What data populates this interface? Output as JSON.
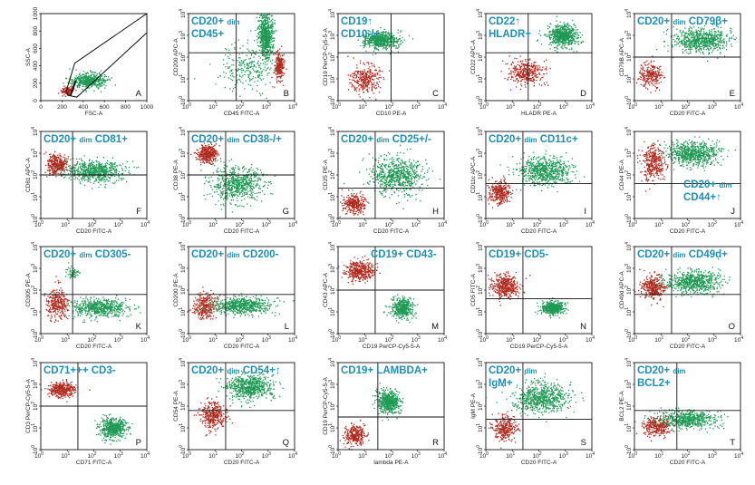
{
  "colors": {
    "red_population": "#b02a1e",
    "green_population": "#1f9a55",
    "annotation": "#1f8fb4",
    "axes": "#111111",
    "gate_dark": "#3a1010"
  },
  "chart_data": [
    {
      "type": "scatter",
      "panel": "A",
      "scale": "linear",
      "xlabel": "FSC-A",
      "ylabel": "SSC-A",
      "xticks": [
        "0",
        "200",
        "400",
        "600",
        "800",
        "1000"
      ],
      "yticks": [
        "0",
        "200",
        "400",
        "600",
        "800",
        "1000"
      ],
      "annotations": [],
      "gate": "polygon",
      "populations": [
        {
          "color": "red",
          "x_center": 250,
          "y_center": 120,
          "spread_x": 50,
          "spread_y": 40,
          "n": 120
        },
        {
          "color": "green",
          "x_center": 450,
          "y_center": 230,
          "spread_x": 140,
          "spread_y": 80,
          "n": 500
        }
      ]
    },
    {
      "type": "scatter",
      "panel": "B",
      "xlabel": "CD45 FITC-A",
      "ylabel": "CD200 APC-A",
      "quadrant": [
        1.8,
        2.2
      ],
      "annotations": [
        "CD20+ dim",
        "CD45+"
      ],
      "populations": [
        {
          "color": "green",
          "x_center": 2.9,
          "y_center": 3.0,
          "spread_x": 0.25,
          "spread_y": 0.9,
          "n": 700
        },
        {
          "color": "red",
          "x_center": 3.4,
          "y_center": 1.6,
          "spread_x": 0.15,
          "spread_y": 0.6,
          "n": 250
        },
        {
          "color": "green",
          "x_center": 2.2,
          "y_center": 1.5,
          "spread_x": 0.9,
          "spread_y": 1.0,
          "n": 250
        }
      ]
    },
    {
      "type": "scatter",
      "panel": "C",
      "xlabel": "CD10 PE-A",
      "ylabel": "CD19 PerCP-Cy5-5-A",
      "quadrant": [
        2.0,
        2.2
      ],
      "annotations": [
        "CD19↑",
        "CD10-/+"
      ],
      "populations": [
        {
          "color": "green",
          "x_center": 1.6,
          "y_center": 2.8,
          "spread_x": 0.6,
          "spread_y": 0.35,
          "n": 650
        },
        {
          "color": "red",
          "x_center": 1.0,
          "y_center": 1.0,
          "spread_x": 0.5,
          "spread_y": 0.6,
          "n": 300
        }
      ]
    },
    {
      "type": "scatter",
      "panel": "D",
      "xlabel": "HLADR PE-A",
      "ylabel": "CD22 APC-A",
      "quadrant": [
        1.6,
        2.2
      ],
      "annotations": [
        "CD22↑",
        "HLADR+"
      ],
      "populations": [
        {
          "color": "green",
          "x_center": 2.9,
          "y_center": 3.0,
          "spread_x": 0.5,
          "spread_y": 0.45,
          "n": 650
        },
        {
          "color": "red",
          "x_center": 1.5,
          "y_center": 1.3,
          "spread_x": 0.55,
          "spread_y": 0.5,
          "n": 350
        }
      ]
    },
    {
      "type": "scatter",
      "panel": "E",
      "xlabel": "CD20 FITC-A",
      "ylabel": "CD79B APC-A",
      "quadrant": [
        1.4,
        2.0
      ],
      "annotations": [
        "CD20+ dim CD79β+"
      ],
      "populations": [
        {
          "color": "green",
          "x_center": 2.5,
          "y_center": 2.8,
          "spread_x": 0.9,
          "spread_y": 0.5,
          "n": 700
        },
        {
          "color": "red",
          "x_center": 0.6,
          "y_center": 1.2,
          "spread_x": 0.4,
          "spread_y": 0.5,
          "n": 250
        }
      ]
    },
    {
      "type": "scatter",
      "panel": "F",
      "xlabel": "CD20 FITC-A",
      "ylabel": "CD81 APC-A",
      "quadrant": [
        1.2,
        2.0
      ],
      "annotations": [
        "CD20+ dim CD81+"
      ],
      "populations": [
        {
          "color": "red",
          "x_center": 0.6,
          "y_center": 2.5,
          "spread_x": 0.35,
          "spread_y": 0.4,
          "n": 350
        },
        {
          "color": "green",
          "x_center": 2.0,
          "y_center": 2.2,
          "spread_x": 1.0,
          "spread_y": 0.45,
          "n": 650
        }
      ]
    },
    {
      "type": "scatter",
      "panel": "G",
      "xlabel": "CD20 FITC-A",
      "ylabel": "CD38 PE-A",
      "quadrant": [
        1.4,
        2.0
      ],
      "annotations": [
        "CD20+ dim CD38-/+"
      ],
      "populations": [
        {
          "color": "red",
          "x_center": 0.7,
          "y_center": 3.0,
          "spread_x": 0.35,
          "spread_y": 0.35,
          "n": 350
        },
        {
          "color": "green",
          "x_center": 1.8,
          "y_center": 1.6,
          "spread_x": 0.9,
          "spread_y": 0.7,
          "n": 650
        }
      ]
    },
    {
      "type": "scatter",
      "panel": "H",
      "xlabel": "CD20 FITC-A",
      "ylabel": "CD25 PE-A",
      "quadrant": [
        1.4,
        1.4
      ],
      "annotations": [
        "CD20+ dim CD25+/-"
      ],
      "populations": [
        {
          "color": "red",
          "x_center": 0.6,
          "y_center": 0.7,
          "spread_x": 0.35,
          "spread_y": 0.4,
          "n": 300
        },
        {
          "color": "green",
          "x_center": 2.2,
          "y_center": 2.0,
          "spread_x": 0.9,
          "spread_y": 0.8,
          "n": 700
        }
      ]
    },
    {
      "type": "scatter",
      "panel": "I",
      "xlabel": "CD20 FITC-A",
      "ylabel": "CD11c APC-A",
      "quadrant": [
        1.4,
        1.6
      ],
      "annotations": [
        "CD20+ dim CD11c+"
      ],
      "populations": [
        {
          "color": "red",
          "x_center": 0.5,
          "y_center": 1.2,
          "spread_x": 0.35,
          "spread_y": 0.45,
          "n": 300
        },
        {
          "color": "green",
          "x_center": 2.2,
          "y_center": 2.2,
          "spread_x": 0.9,
          "spread_y": 0.6,
          "n": 700
        }
      ]
    },
    {
      "type": "scatter",
      "panel": "J",
      "xlabel": "CD20 FITC-A",
      "ylabel": "CD44 PE-A",
      "quadrant": [
        1.4,
        1.6
      ],
      "annotations": [
        "CD20+ dim",
        "CD44+↑"
      ],
      "populations": [
        {
          "color": "red",
          "x_center": 0.7,
          "y_center": 2.6,
          "spread_x": 0.4,
          "spread_y": 0.7,
          "n": 350
        },
        {
          "color": "green",
          "x_center": 2.2,
          "y_center": 3.0,
          "spread_x": 0.9,
          "spread_y": 0.5,
          "n": 700
        }
      ]
    },
    {
      "type": "scatter",
      "panel": "K",
      "xlabel": "CD20 FITC-A",
      "ylabel": "CD305 PE-A",
      "quadrant": [
        1.2,
        1.8
      ],
      "annotations": [
        "CD20+ dim CD305-"
      ],
      "populations": [
        {
          "color": "red",
          "x_center": 0.6,
          "y_center": 1.4,
          "spread_x": 0.35,
          "spread_y": 0.6,
          "n": 300
        },
        {
          "color": "green",
          "x_center": 2.2,
          "y_center": 1.2,
          "spread_x": 1.0,
          "spread_y": 0.35,
          "n": 600
        },
        {
          "color": "green",
          "x_center": 1.2,
          "y_center": 2.8,
          "spread_x": 0.2,
          "spread_y": 0.25,
          "n": 60
        }
      ]
    },
    {
      "type": "scatter",
      "panel": "L",
      "xlabel": "CD20 FITC-A",
      "ylabel": "CD200 PE-A",
      "quadrant": [
        1.4,
        1.8
      ],
      "annotations": [
        "CD20+ dim CD200-"
      ],
      "populations": [
        {
          "color": "red",
          "x_center": 0.6,
          "y_center": 1.3,
          "spread_x": 0.4,
          "spread_y": 0.5,
          "n": 300
        },
        {
          "color": "green",
          "x_center": 2.0,
          "y_center": 1.3,
          "spread_x": 1.0,
          "spread_y": 0.35,
          "n": 650
        }
      ]
    },
    {
      "type": "scatter",
      "panel": "M",
      "xlabel": "CD19 PerCP-Cy5-5-A",
      "ylabel": "CD43 APC-A",
      "quadrant": [
        1.4,
        2.0
      ],
      "annotations": [
        "CD19+ CD43-"
      ],
      "populations": [
        {
          "color": "red",
          "x_center": 0.8,
          "y_center": 2.9,
          "spread_x": 0.45,
          "spread_y": 0.4,
          "n": 400
        },
        {
          "color": "green",
          "x_center": 2.4,
          "y_center": 1.2,
          "spread_x": 0.35,
          "spread_y": 0.4,
          "n": 450
        }
      ]
    },
    {
      "type": "scatter",
      "panel": "N",
      "xlabel": "CD19 PerCP-Cy5-5-A",
      "ylabel": "CD5 FITC-A",
      "quadrant": [
        1.4,
        1.6
      ],
      "annotations": [
        "CD19+ CD5-"
      ],
      "populations": [
        {
          "color": "red",
          "x_center": 0.7,
          "y_center": 2.2,
          "spread_x": 0.45,
          "spread_y": 0.45,
          "n": 400
        },
        {
          "color": "green",
          "x_center": 2.5,
          "y_center": 1.2,
          "spread_x": 0.35,
          "spread_y": 0.3,
          "n": 450
        }
      ]
    },
    {
      "type": "scatter",
      "panel": "O",
      "xlabel": "CD20 FITC-A",
      "ylabel": "CD49d APC-A",
      "quadrant": [
        1.4,
        1.8
      ],
      "annotations": [
        "CD20+ dim CD49d+"
      ],
      "populations": [
        {
          "color": "red",
          "x_center": 0.7,
          "y_center": 2.1,
          "spread_x": 0.4,
          "spread_y": 0.5,
          "n": 350
        },
        {
          "color": "green",
          "x_center": 2.2,
          "y_center": 2.4,
          "spread_x": 0.9,
          "spread_y": 0.45,
          "n": 650
        }
      ]
    },
    {
      "type": "scatter",
      "panel": "P",
      "xlabel": "CD71 FITC-A",
      "ylabel": "CD3 PerCP-Cy5-5-A",
      "quadrant": [
        1.4,
        2.0
      ],
      "annotations": [
        "CD71+++ CD3-"
      ],
      "populations": [
        {
          "color": "red",
          "x_center": 0.8,
          "y_center": 2.8,
          "spread_x": 0.45,
          "spread_y": 0.3,
          "n": 350
        },
        {
          "color": "green",
          "x_center": 2.7,
          "y_center": 1.0,
          "spread_x": 0.45,
          "spread_y": 0.4,
          "n": 550
        }
      ]
    },
    {
      "type": "scatter",
      "panel": "Q",
      "xlabel": "CD20 FITC-A",
      "ylabel": "CD54 PE-A",
      "quadrant": [
        1.4,
        1.8
      ],
      "annotations": [
        "CD20+ dim CD54+↑"
      ],
      "populations": [
        {
          "color": "red",
          "x_center": 0.9,
          "y_center": 1.6,
          "spread_x": 0.45,
          "spread_y": 0.6,
          "n": 350
        },
        {
          "color": "green",
          "x_center": 2.3,
          "y_center": 2.9,
          "spread_x": 0.8,
          "spread_y": 0.5,
          "n": 650
        }
      ]
    },
    {
      "type": "scatter",
      "panel": "R",
      "xlabel": "lambda PE-A",
      "ylabel": "CD19 PerCP-Cy5-5-A",
      "quadrant": [
        1.5,
        1.5
      ],
      "annotations": [
        "CD19+ LAMBDA+"
      ],
      "populations": [
        {
          "color": "red",
          "x_center": 0.6,
          "y_center": 0.7,
          "spread_x": 0.35,
          "spread_y": 0.4,
          "n": 300
        },
        {
          "color": "green",
          "x_center": 1.9,
          "y_center": 2.2,
          "spread_x": 0.4,
          "spread_y": 0.45,
          "n": 550
        }
      ]
    },
    {
      "type": "scatter",
      "panel": "S",
      "xlabel": "CD20 FITC-A",
      "ylabel": "IgM PE-A",
      "quadrant": [
        1.4,
        1.4
      ],
      "annotations": [
        "CD20+ dim",
        "IgM+"
      ],
      "populations": [
        {
          "color": "red",
          "x_center": 0.7,
          "y_center": 1.0,
          "spread_x": 0.4,
          "spread_y": 0.5,
          "n": 300
        },
        {
          "color": "green",
          "x_center": 2.1,
          "y_center": 2.4,
          "spread_x": 0.9,
          "spread_y": 0.6,
          "n": 700
        }
      ]
    },
    {
      "type": "scatter",
      "panel": "T",
      "xlabel": "CD20 FITC-A",
      "ylabel": "BCL2 PE-A",
      "quadrant": [
        1.6,
        1.8
      ],
      "annotations": [
        "CD20+ dim",
        "BCL2+"
      ],
      "populations": [
        {
          "color": "red",
          "x_center": 0.8,
          "y_center": 1.1,
          "spread_x": 0.45,
          "spread_y": 0.4,
          "n": 300
        },
        {
          "color": "green",
          "x_center": 2.0,
          "y_center": 1.4,
          "spread_x": 0.9,
          "spread_y": 0.35,
          "n": 600
        }
      ]
    }
  ],
  "log_axis": {
    "range": [
      0,
      4
    ],
    "tick_labels": [
      "10",
      "10",
      "10",
      "10",
      "10"
    ],
    "tick_exponents": [
      "0",
      "1",
      "2",
      "3",
      "4"
    ]
  }
}
